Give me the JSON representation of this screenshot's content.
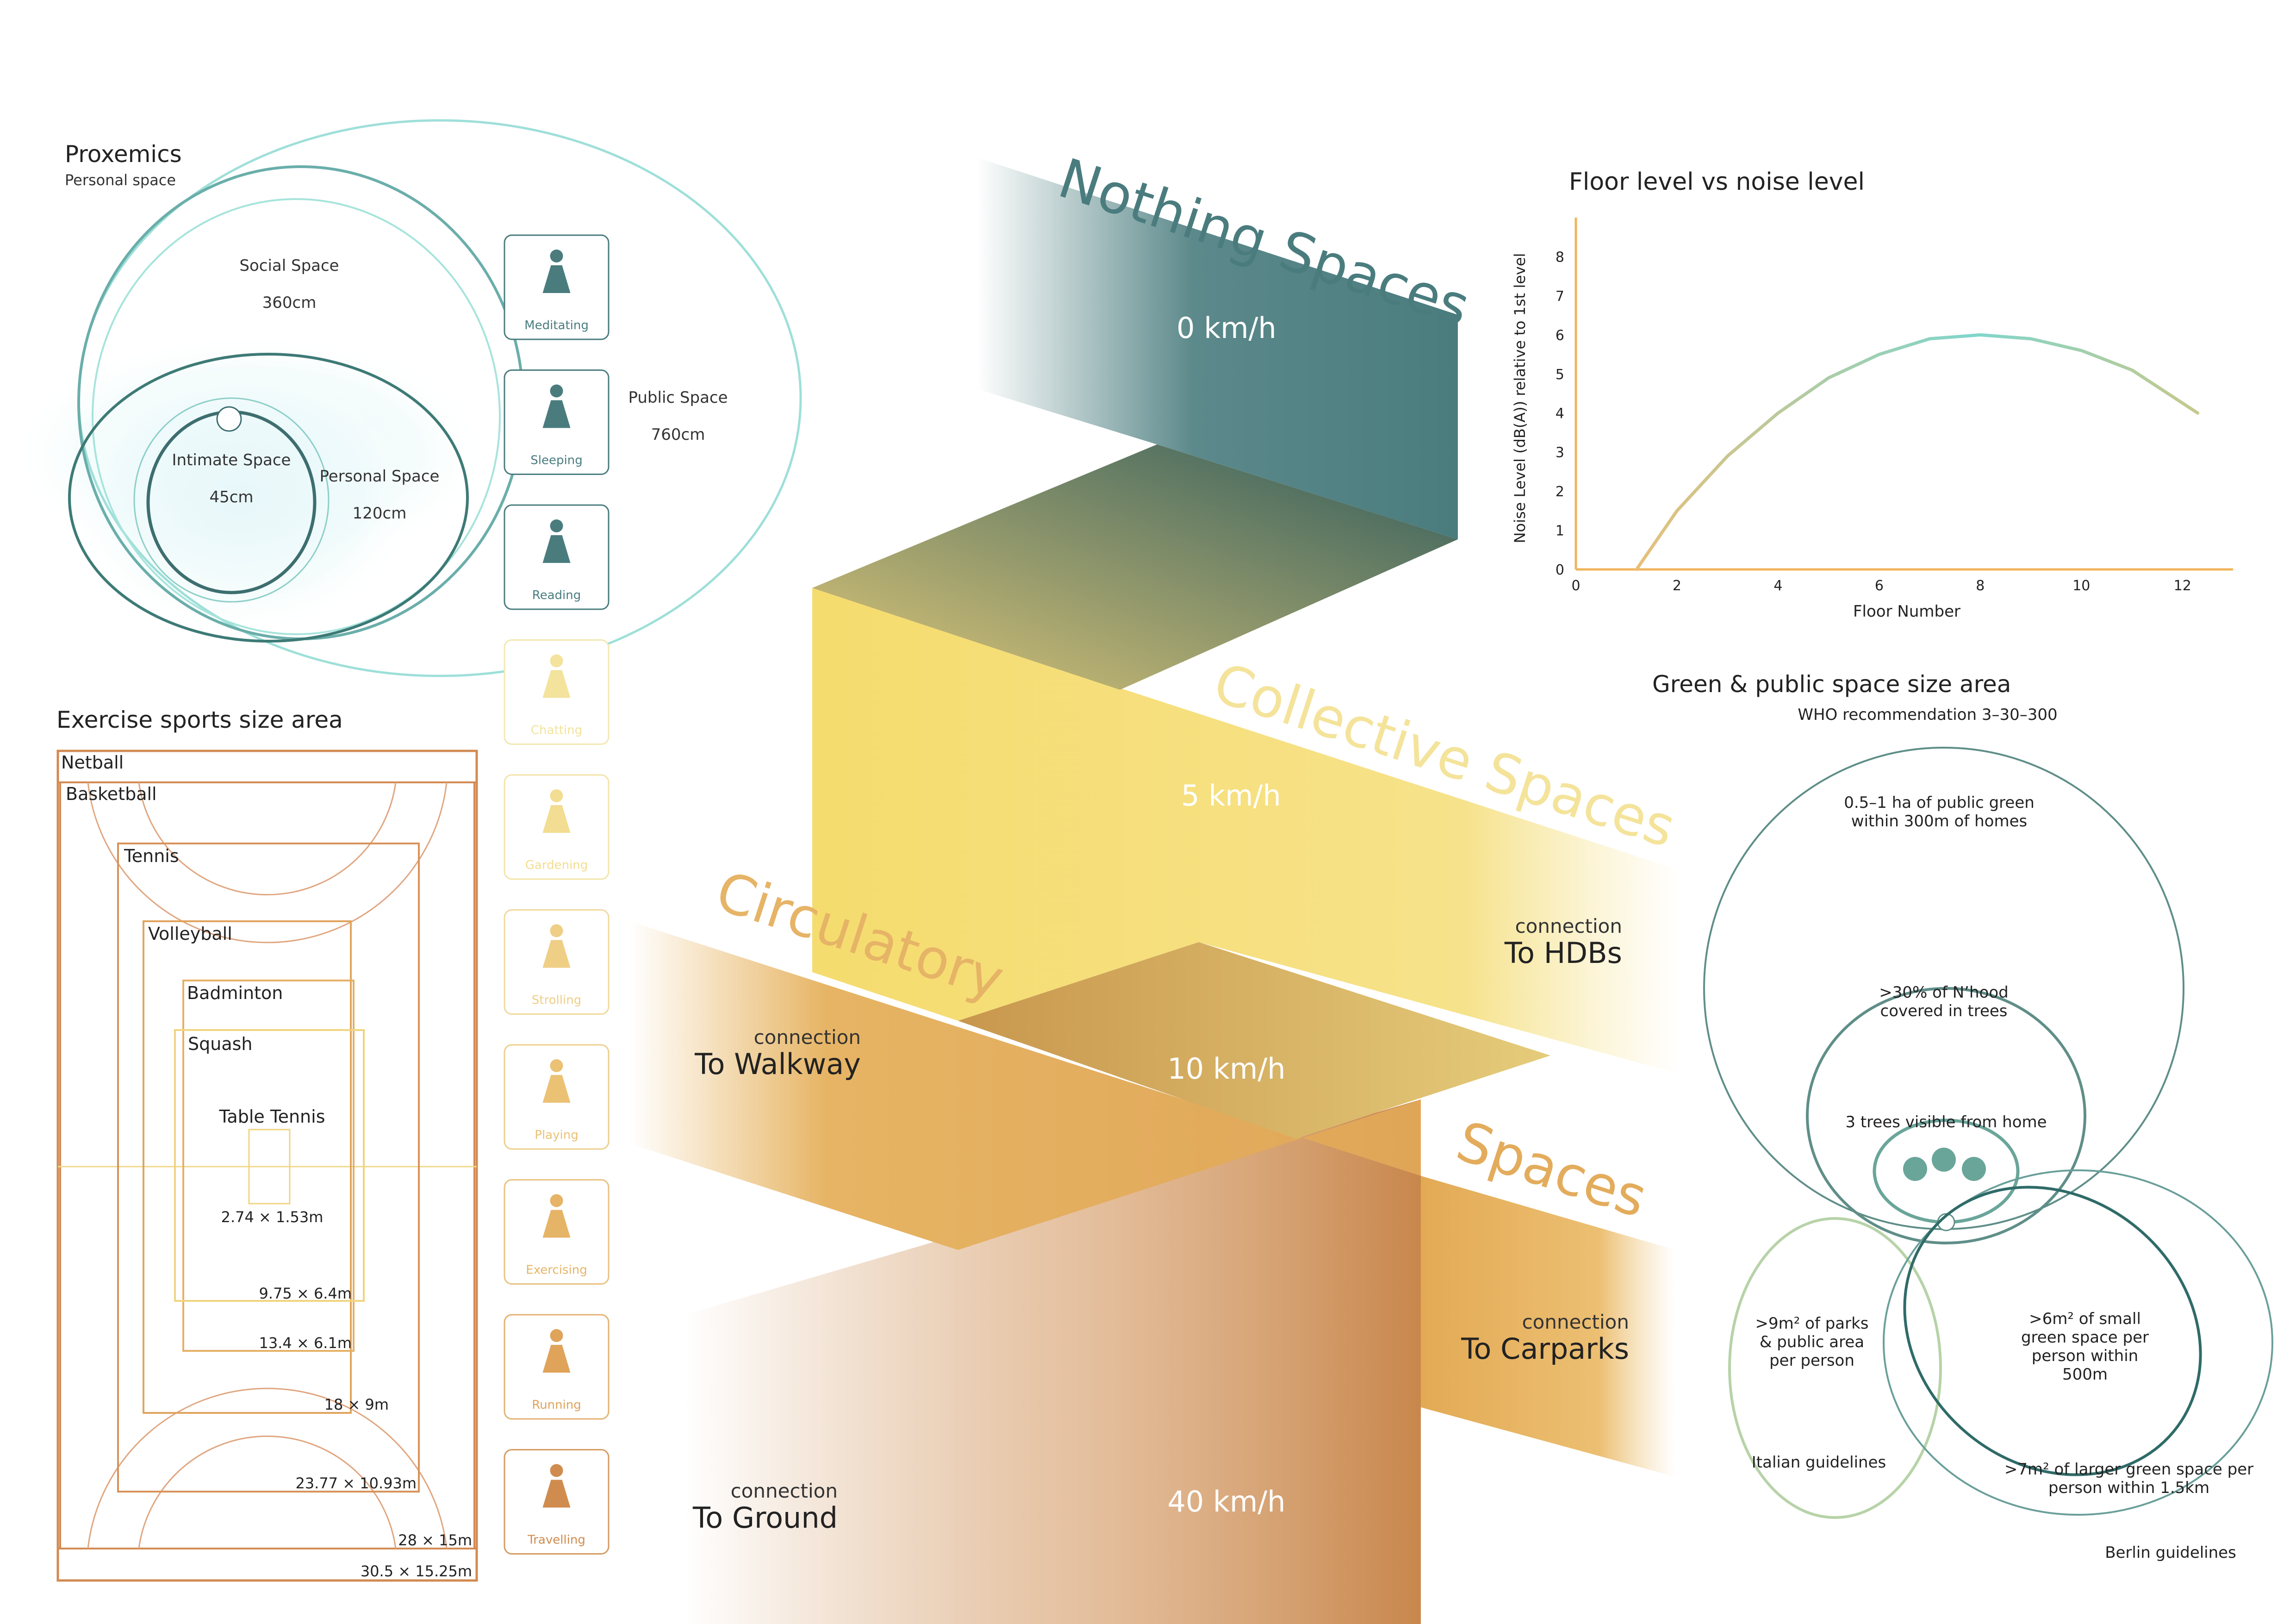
{
  "proxemics": {
    "title": "Proxemics",
    "subtitle": "Personal space",
    "zones": [
      {
        "name": "Social Space",
        "size": "360cm"
      },
      {
        "name": "Public Space",
        "size": "760cm"
      },
      {
        "name": "Intimate Space",
        "size": "45cm"
      },
      {
        "name": "Personal Space",
        "size": "120cm"
      }
    ]
  },
  "activities": [
    {
      "label": "Meditating",
      "icon": "meditating-icon"
    },
    {
      "label": "Sleeping",
      "icon": "sleeping-icon"
    },
    {
      "label": "Reading",
      "icon": "reading-icon"
    },
    {
      "label": "Chatting",
      "icon": "chatting-icon"
    },
    {
      "label": "Gardening",
      "icon": "gardening-icon"
    },
    {
      "label": "Strolling",
      "icon": "strolling-icon"
    },
    {
      "label": "Playing",
      "icon": "playing-icon"
    },
    {
      "label": "Exercising",
      "icon": "exercising-icon"
    },
    {
      "label": "Running",
      "icon": "running-icon"
    },
    {
      "label": "Travelling",
      "icon": "travelling-icon"
    }
  ],
  "sports": {
    "title": "Exercise sports size area",
    "courts": [
      {
        "name": "Netball",
        "size": "30.5 × 15.25m"
      },
      {
        "name": "Basketball",
        "size": "28 × 15m"
      },
      {
        "name": "Tennis",
        "size": "23.77 × 10.93m"
      },
      {
        "name": "Volleyball",
        "size": "18 × 9m"
      },
      {
        "name": "Badminton",
        "size": "13.4 × 6.1m"
      },
      {
        "name": "Squash",
        "size": "9.75 × 6.4m"
      },
      {
        "name": "Table Tennis",
        "size": "2.74 × 1.53m"
      }
    ]
  },
  "ribbon": {
    "nothing": {
      "title": "Nothing Spaces",
      "speed": "0 km/h"
    },
    "collective": {
      "title": "Collective Spaces",
      "speed": "5 km/h",
      "connection_small": "connection",
      "connection_big": "To HDBs"
    },
    "circulatory": {
      "title": "Circulatory",
      "speed": "10 km/h",
      "connection_small": "connection",
      "connection_big": "To Walkway"
    },
    "spaces": {
      "title": "Spaces",
      "connection_small": "connection",
      "connection_big": "To Carparks"
    },
    "ground": {
      "speed": "40 km/h",
      "connection_small": "connection",
      "connection_big": "To Ground"
    }
  },
  "chart_data": {
    "type": "line",
    "title": "Floor level vs noise level",
    "xlabel": "Floor Number",
    "ylabel": "Noise Level (dB(A)) relative to 1st level",
    "xlim": [
      0,
      13
    ],
    "ylim": [
      0,
      9
    ],
    "xticks": [
      0,
      2,
      4,
      6,
      8,
      10,
      12
    ],
    "yticks": [
      0,
      1,
      2,
      3,
      4,
      5,
      6,
      7,
      8
    ],
    "series": [
      {
        "x": [
          1.2,
          2,
          3,
          4,
          5,
          6,
          7,
          8,
          9,
          10,
          11,
          12.3
        ],
        "y": [
          0,
          1.5,
          2.9,
          4.0,
          4.9,
          5.5,
          5.9,
          6.0,
          5.9,
          5.6,
          5.1,
          4.0
        ]
      }
    ],
    "colors": {
      "axis": "#f0b45c",
      "line_start": "#e6c07a",
      "line_end": "#7fd6cc"
    }
  },
  "green": {
    "title": "Green & public space size area",
    "subtitle": "WHO recommendation 3–30–300",
    "outer": "0.5–1 ha of public green within 300m of homes",
    "middle": ">30% of N’hood covered in trees",
    "inner": "3 trees visible from home",
    "parks": ">9m² of parks & public area per person",
    "italian": "Italian guidelines",
    "small_green": ">6m² of small green space per person within 500m",
    "larger_green": ">7m² of larger green space per person within 1.5km",
    "berlin": "Berlin guidelines"
  },
  "colors": {
    "teal": "#4a7c7e",
    "dark_teal": "#3d6e70",
    "yellow": "#f5e07a",
    "orange": "#e3ac5c",
    "brown": "#c8874c",
    "sport": "#d38a52"
  }
}
